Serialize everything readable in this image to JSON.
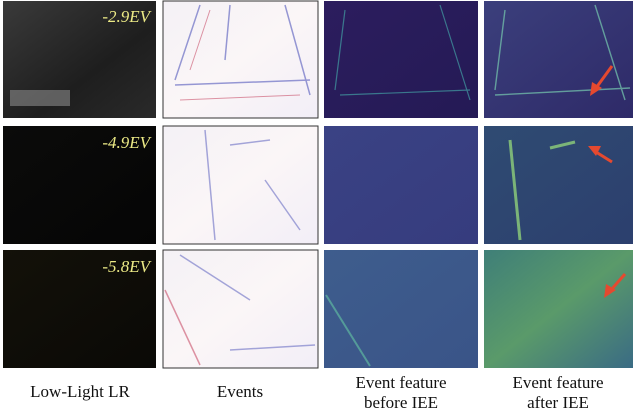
{
  "rows": [
    {
      "exposure": "-2.9EV"
    },
    {
      "exposure": "-4.9EV"
    },
    {
      "exposure": "-5.8EV"
    }
  ],
  "columns": [
    {
      "caption": [
        "Low-Light LR"
      ]
    },
    {
      "caption": [
        "Events"
      ]
    },
    {
      "caption": [
        "Event feature",
        "before IEE"
      ]
    },
    {
      "caption": [
        "Event feature",
        "after IEE"
      ]
    }
  ]
}
